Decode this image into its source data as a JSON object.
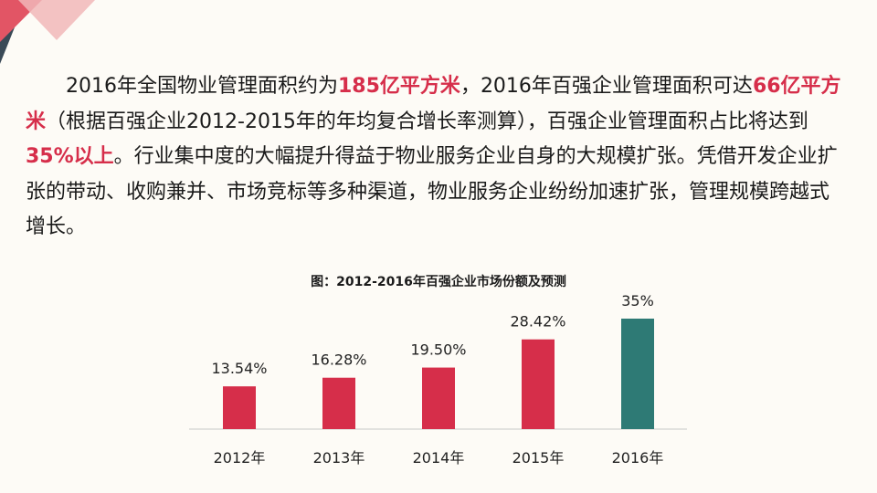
{
  "paragraph": {
    "p1": "2016年全国物业管理面积约为",
    "h1": "185亿平方米",
    "p2": "，2016年百强企业管理面积可达",
    "h2": "66亿平方米",
    "p3": "（根据百强企业2012-2015年的年均复合增长率测算），百强企业管理面积占比将达到",
    "h3": "35%以上",
    "p4": "。行业集中度的大幅提升得益于物业服务企业自身的大规模扩张。凭借开发企业扩张的带动、收购兼并、市场竞标等多种渠道，物业服务企业纷纷加速扩张，管理规模跨越式增长。"
  },
  "colors": {
    "highlight": "#d62e4a",
    "bar_red": "#d62e4a",
    "bar_teal": "#2e7a75",
    "decor_dark": "#3a4a57",
    "decor_red": "#e25565",
    "decor_pink": "#f1b7b9"
  },
  "chart_data": {
    "type": "bar",
    "title": "图：2012-2016年百强企业市场份额及预测",
    "categories": [
      "2012年",
      "2013年",
      "2014年",
      "2015年",
      "2016年"
    ],
    "values": [
      13.54,
      16.28,
      19.5,
      28.42,
      35
    ],
    "value_labels": [
      "13.54%",
      "16.28%",
      "19.50%",
      "28.42%",
      "35%"
    ],
    "ylim": [
      0,
      35
    ],
    "xlabel": "",
    "ylabel": "",
    "grid": false,
    "highlight_last": true
  }
}
